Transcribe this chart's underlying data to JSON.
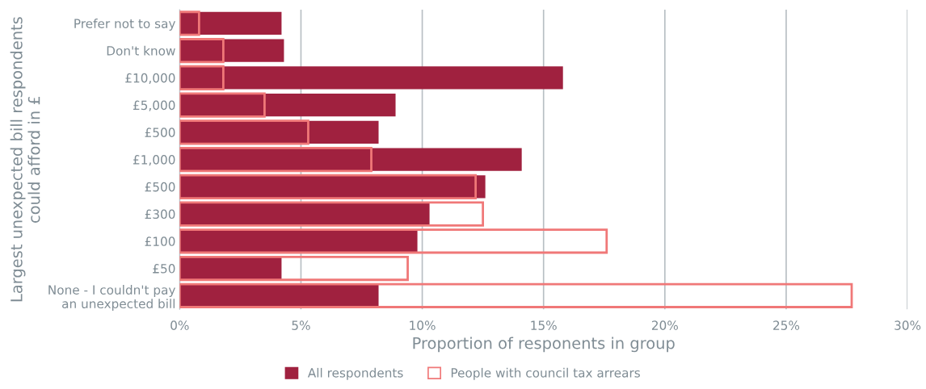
{
  "chart_data": {
    "type": "bar",
    "orientation": "horizontal",
    "ylabel": "Largest unexpected bill respondents could afford in £",
    "xlabel": "Proportion of responents in group",
    "categories": [
      "Prefer not to say",
      "Don't know",
      "£10,000",
      "£5,000",
      "£500",
      "£1,000",
      "£500",
      "£300",
      "£100",
      "£50",
      "None - I couldn't pay\nan unexpected bill"
    ],
    "series": [
      {
        "name": "All respondents",
        "color": "#a0213f",
        "values": [
          4.2,
          4.3,
          15.8,
          8.9,
          8.2,
          14.1,
          12.6,
          10.3,
          9.8,
          4.2,
          8.2
        ]
      },
      {
        "name": "People with council tax arrears",
        "color": "#f07878",
        "values": [
          0.8,
          1.8,
          1.8,
          3.5,
          5.3,
          7.9,
          12.2,
          12.5,
          17.6,
          9.4,
          27.7
        ]
      }
    ],
    "xlim": [
      0,
      30
    ],
    "xticks": [
      {
        "value": 0,
        "label": "0%"
      },
      {
        "value": 5,
        "label": "5%"
      },
      {
        "value": 10,
        "label": "10%"
      },
      {
        "value": 15,
        "label": "15%"
      },
      {
        "value": 20,
        "label": "20%"
      },
      {
        "value": 25,
        "label": "25%"
      },
      {
        "value": 30,
        "label": "30%"
      }
    ],
    "grid": "x",
    "legend": "bottom"
  }
}
